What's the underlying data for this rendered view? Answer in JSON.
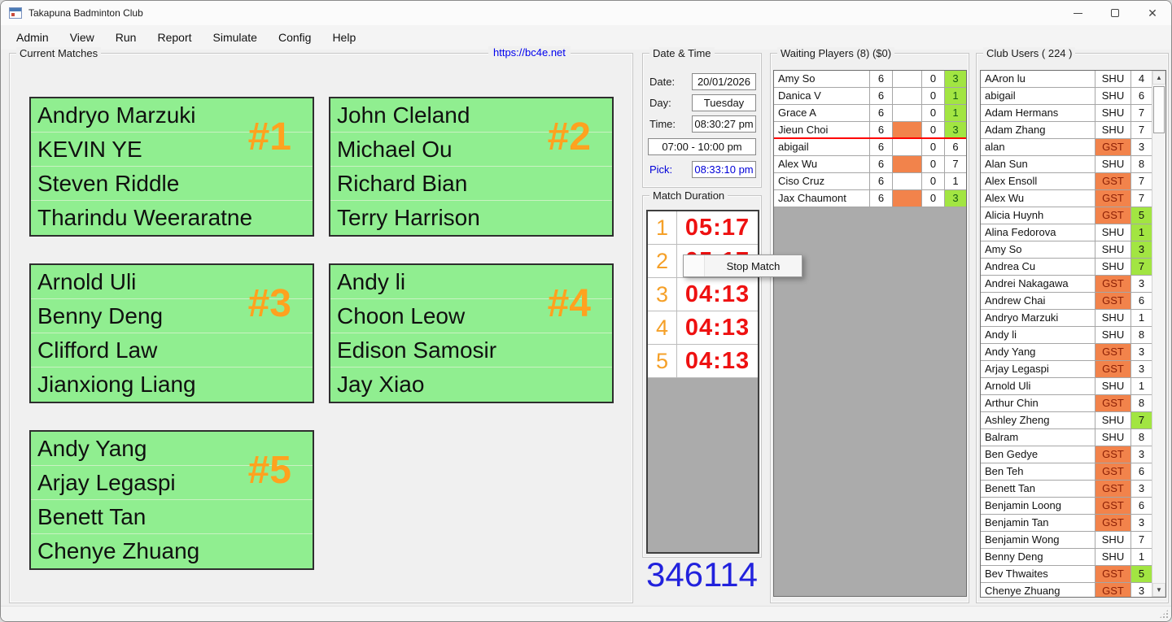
{
  "window": {
    "title": "Takapuna Badminton Club"
  },
  "menu": {
    "items": [
      "Admin",
      "View",
      "Run",
      "Report",
      "Simulate",
      "Config",
      "Help"
    ]
  },
  "icons": {
    "close": "✕",
    "up_arrow": "▲",
    "down_arrow": "▼"
  },
  "current_matches": {
    "title": "Current Matches",
    "link": "https://bc4e.net",
    "matches": [
      {
        "number": "#1",
        "players": [
          "Andryo Marzuki",
          "KEVIN YE",
          "Steven Riddle",
          "Tharindu Weeraratne"
        ]
      },
      {
        "number": "#2",
        "players": [
          "John Cleland",
          "Michael Ou",
          "Richard Bian",
          "Terry Harrison"
        ]
      },
      {
        "number": "#3",
        "players": [
          "Arnold Uli",
          "Benny Deng",
          "Clifford Law",
          "Jianxiong Liang"
        ]
      },
      {
        "number": "#4",
        "players": [
          "Andy li",
          "Choon Leow",
          "Edison Samosir",
          "Jay Xiao"
        ]
      },
      {
        "number": "#5",
        "players": [
          "Andy Yang",
          "Arjay Legaspi",
          "Benett Tan",
          "Chenye Zhuang"
        ]
      }
    ]
  },
  "datetime": {
    "title": "Date & Time",
    "date_label": "Date:",
    "date": "20/01/2026",
    "day_label": "Day:",
    "day": "Tuesday",
    "time_label": "Time:",
    "time": "08:30:27 pm",
    "session": "07:00 - 10:00 pm",
    "pick_label": "Pick:",
    "pick": "08:33:10 pm"
  },
  "match_duration": {
    "title": "Match Duration",
    "rows": [
      {
        "court": "1",
        "time": "05:17"
      },
      {
        "court": "2",
        "time": "05:17"
      },
      {
        "court": "3",
        "time": "04:13"
      },
      {
        "court": "4",
        "time": "04:13"
      },
      {
        "court": "5",
        "time": "04:13"
      }
    ],
    "counter": "346114"
  },
  "context_menu": {
    "items": [
      "Stop Match"
    ]
  },
  "waiting_players": {
    "title": "Waiting Players (8) ($0)",
    "divider_after": 4,
    "rows": [
      {
        "name": "Amy So",
        "games": "6",
        "flag": false,
        "zero": "0",
        "level": "3",
        "level_green": true
      },
      {
        "name": "Danica V",
        "games": "6",
        "flag": false,
        "zero": "0",
        "level": "1",
        "level_green": true
      },
      {
        "name": "Grace A",
        "games": "6",
        "flag": false,
        "zero": "0",
        "level": "1",
        "level_green": true
      },
      {
        "name": "Jieun Choi",
        "games": "6",
        "flag": true,
        "zero": "0",
        "level": "3",
        "level_green": true
      },
      {
        "name": "abigail",
        "games": "6",
        "flag": false,
        "zero": "0",
        "level": "6",
        "level_green": false
      },
      {
        "name": "Alex Wu",
        "games": "6",
        "flag": true,
        "zero": "0",
        "level": "7",
        "level_green": false
      },
      {
        "name": "Ciso Cruz",
        "games": "6",
        "flag": false,
        "zero": "0",
        "level": "1",
        "level_green": false
      },
      {
        "name": "Jax Chaumont",
        "games": "6",
        "flag": true,
        "zero": "0",
        "level": "3",
        "level_green": true
      }
    ]
  },
  "club_users": {
    "title": "Club Users ( 224 )",
    "rows": [
      {
        "name": "AAron lu",
        "type": "SHU",
        "num": "4",
        "num_green": false
      },
      {
        "name": "abigail",
        "type": "SHU",
        "num": "6",
        "num_green": false
      },
      {
        "name": "Adam Hermans",
        "type": "SHU",
        "num": "7",
        "num_green": false
      },
      {
        "name": "Adam Zhang",
        "type": "SHU",
        "num": "7",
        "num_green": false
      },
      {
        "name": "alan",
        "type": "GST",
        "num": "3",
        "num_green": false
      },
      {
        "name": "Alan Sun",
        "type": "SHU",
        "num": "8",
        "num_green": false
      },
      {
        "name": "Alex Ensoll",
        "type": "GST",
        "num": "7",
        "num_green": false
      },
      {
        "name": "Alex Wu",
        "type": "GST",
        "num": "7",
        "num_green": false
      },
      {
        "name": "Alicia Huynh",
        "type": "GST",
        "num": "5",
        "num_green": true
      },
      {
        "name": "Alina Fedorova",
        "type": "SHU",
        "num": "1",
        "num_green": true
      },
      {
        "name": "Amy So",
        "type": "SHU",
        "num": "3",
        "num_green": true
      },
      {
        "name": "Andrea Cu",
        "type": "SHU",
        "num": "7",
        "num_green": true
      },
      {
        "name": "Andrei Nakagawa",
        "type": "GST",
        "num": "3",
        "num_green": false
      },
      {
        "name": "Andrew Chai",
        "type": "GST",
        "num": "6",
        "num_green": false
      },
      {
        "name": "Andryo Marzuki",
        "type": "SHU",
        "num": "1",
        "num_green": false
      },
      {
        "name": "Andy li",
        "type": "SHU",
        "num": "8",
        "num_green": false
      },
      {
        "name": "Andy Yang",
        "type": "GST",
        "num": "3",
        "num_green": false
      },
      {
        "name": "Arjay Legaspi",
        "type": "GST",
        "num": "3",
        "num_green": false
      },
      {
        "name": "Arnold Uli",
        "type": "SHU",
        "num": "1",
        "num_green": false
      },
      {
        "name": "Arthur Chin",
        "type": "GST",
        "num": "8",
        "num_green": false
      },
      {
        "name": "Ashley Zheng",
        "type": "SHU",
        "num": "7",
        "num_green": true
      },
      {
        "name": "Balram",
        "type": "SHU",
        "num": "8",
        "num_green": false
      },
      {
        "name": "Ben Gedye",
        "type": "GST",
        "num": "3",
        "num_green": false
      },
      {
        "name": "Ben Teh",
        "type": "GST",
        "num": "6",
        "num_green": false
      },
      {
        "name": "Benett Tan",
        "type": "GST",
        "num": "3",
        "num_green": false
      },
      {
        "name": "Benjamin Loong",
        "type": "GST",
        "num": "6",
        "num_green": false
      },
      {
        "name": "Benjamin Tan",
        "type": "GST",
        "num": "3",
        "num_green": false
      },
      {
        "name": "Benjamin Wong",
        "type": "SHU",
        "num": "7",
        "num_green": false
      },
      {
        "name": "Benny Deng",
        "type": "SHU",
        "num": "1",
        "num_green": false
      },
      {
        "name": "Bev Thwaites",
        "type": "GST",
        "num": "5",
        "num_green": true
      },
      {
        "name": "Chenye Zhuang",
        "type": "GST",
        "num": "3",
        "num_green": false
      }
    ]
  },
  "colors": {
    "card_green": "#90EE90",
    "court_number_orange": "#FFA21F",
    "duration_red": "#EE1111",
    "highlight_orange": "#F2834B",
    "highlight_green": "#A2E542",
    "link_blue": "#0000EE",
    "pick_blue": "#0000D8",
    "counter_blue": "#2222DD",
    "divider_red": "#FF0000"
  }
}
